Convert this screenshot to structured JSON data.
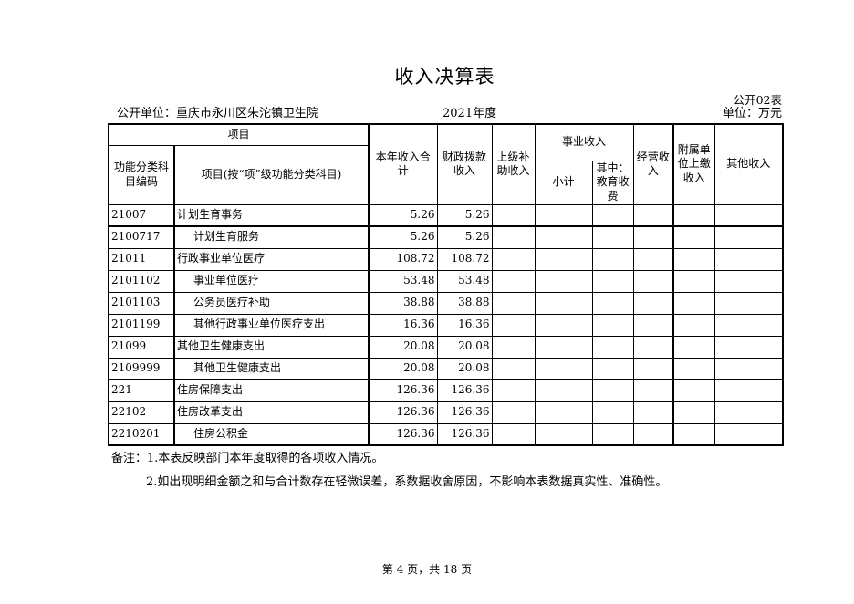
{
  "page": {
    "title": "收入决算表",
    "form_code": "公开02表",
    "publisher": "公开单位：重庆市永川区朱沱镇卫生院",
    "year": "2021年度",
    "unit": "单位：万元",
    "page_footer": "第 4 页，共 18 页"
  },
  "table": {
    "header": {
      "project_group": "项目",
      "code": "功能分类科目编码",
      "project": "项目(按“项”级功能分类科目)",
      "year_total": "本年收入合计",
      "fiscal_appropriation": "财政拨款收入",
      "upper_subsidy": "上级补助收入",
      "career_income_group": "事业收入",
      "subtotal": "小计",
      "education_fee": "其中：教育收费",
      "operating_income": "经营收入",
      "affiliated_turn_in": "附属单位上缴收入",
      "other_income": "其他收入"
    },
    "rows": [
      {
        "code": "21007",
        "name": "计划生育事务",
        "indent": false,
        "thick_bottom": true,
        "values": [
          "5.26",
          "5.26",
          "",
          "",
          "",
          "",
          "",
          ""
        ]
      },
      {
        "code": "2100717",
        "name": "计划生育服务",
        "indent": true,
        "thick_bottom": false,
        "values": [
          "5.26",
          "5.26",
          "",
          "",
          "",
          "",
          "",
          ""
        ]
      },
      {
        "code": "21011",
        "name": "行政事业单位医疗",
        "indent": false,
        "thick_bottom": false,
        "values": [
          "108.72",
          "108.72",
          "",
          "",
          "",
          "",
          "",
          ""
        ]
      },
      {
        "code": "2101102",
        "name": "事业单位医疗",
        "indent": true,
        "thick_bottom": false,
        "values": [
          "53.48",
          "53.48",
          "",
          "",
          "",
          "",
          "",
          ""
        ]
      },
      {
        "code": "2101103",
        "name": "公务员医疗补助",
        "indent": true,
        "thick_bottom": false,
        "values": [
          "38.88",
          "38.88",
          "",
          "",
          "",
          "",
          "",
          ""
        ]
      },
      {
        "code": "2101199",
        "name": "其他行政事业单位医疗支出",
        "indent": true,
        "thick_bottom": false,
        "values": [
          "16.36",
          "16.36",
          "",
          "",
          "",
          "",
          "",
          ""
        ]
      },
      {
        "code": "21099",
        "name": "其他卫生健康支出",
        "indent": false,
        "thick_bottom": false,
        "values": [
          "20.08",
          "20.08",
          "",
          "",
          "",
          "",
          "",
          ""
        ]
      },
      {
        "code": "2109999",
        "name": "其他卫生健康支出",
        "indent": true,
        "thick_bottom": true,
        "values": [
          "20.08",
          "20.08",
          "",
          "",
          "",
          "",
          "",
          ""
        ]
      },
      {
        "code": "221",
        "name": "住房保障支出",
        "indent": false,
        "thick_bottom": false,
        "values": [
          "126.36",
          "126.36",
          "",
          "",
          "",
          "",
          "",
          ""
        ]
      },
      {
        "code": "22102",
        "name": "住房改革支出",
        "indent": false,
        "thick_bottom": false,
        "values": [
          "126.36",
          "126.36",
          "",
          "",
          "",
          "",
          "",
          ""
        ]
      },
      {
        "code": "2210201",
        "name": "住房公积金",
        "indent": true,
        "thick_bottom": false,
        "values": [
          "126.36",
          "126.36",
          "",
          "",
          "",
          "",
          "",
          ""
        ]
      }
    ]
  },
  "notes": {
    "line1": "备注：1.本表反映部门本年度取得的各项收入情况。",
    "line2": "2.如出现明细金额之和与合计数存在轻微误差，系数据收舍原因，不影响本表数据真实性、准确性。"
  }
}
